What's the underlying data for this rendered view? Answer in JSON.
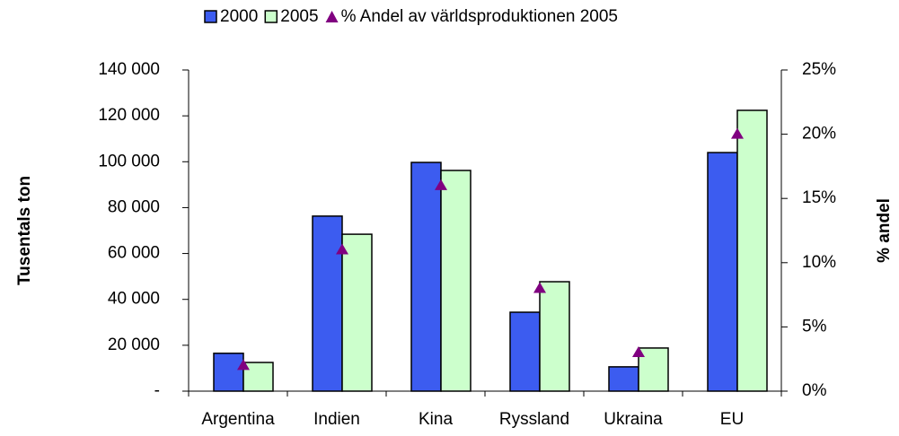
{
  "chart_data": {
    "type": "bar",
    "categories": [
      "Argentina",
      "Indien",
      "Kina",
      "Ryssland",
      "Ukraina",
      "EU"
    ],
    "series": [
      {
        "name": "2000",
        "color": "#3c5cf0",
        "values": [
          16500,
          76300,
          99700,
          34400,
          10600,
          104000
        ]
      },
      {
        "name": "2005",
        "color": "#ccffcc",
        "values": [
          12500,
          68400,
          96200,
          47700,
          18800,
          122400
        ]
      },
      {
        "name": "% Andel av världsproduktionen 2005",
        "color": "#800080",
        "type": "scatter",
        "axis": "y2",
        "values": [
          2,
          11,
          16,
          8,
          3,
          20
        ]
      }
    ],
    "ylabel": "Tusentals ton",
    "y2label": "% andel",
    "ylim": [
      0,
      140000
    ],
    "yticks": [
      {
        "value": 0,
        "label": "-"
      },
      {
        "value": 20000,
        "label": "20 000"
      },
      {
        "value": 40000,
        "label": "40 000"
      },
      {
        "value": 60000,
        "label": "60 000"
      },
      {
        "value": 80000,
        "label": "80 000"
      },
      {
        "value": 100000,
        "label": "100 000"
      },
      {
        "value": 120000,
        "label": "120 000"
      },
      {
        "value": 140000,
        "label": "140 000"
      }
    ],
    "y2lim": [
      0,
      25
    ],
    "y2ticks": [
      {
        "value": 0,
        "label": "0%"
      },
      {
        "value": 5,
        "label": "5%"
      },
      {
        "value": 10,
        "label": "10%"
      },
      {
        "value": 15,
        "label": "15%"
      },
      {
        "value": 20,
        "label": "20%"
      },
      {
        "value": 25,
        "label": "25%"
      }
    ],
    "legend": "top"
  }
}
